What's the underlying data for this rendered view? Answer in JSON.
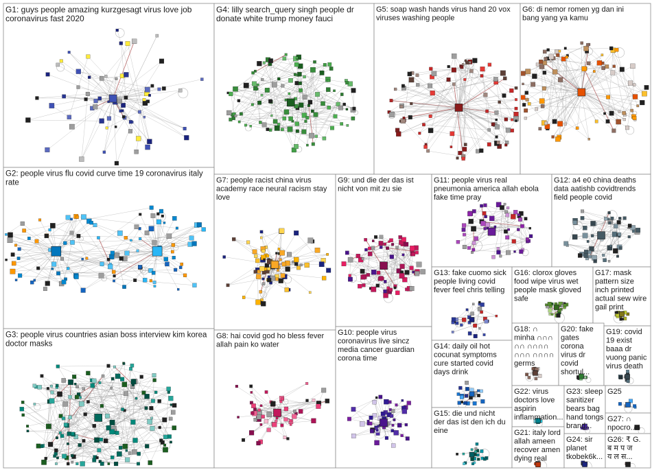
{
  "graph": {
    "background": "#ffffff",
    "groups": [
      {
        "id": "G1",
        "lines": [
          "G1: guys people amazing kurzgesagt virus love job",
          "coronavirus fast 2020"
        ],
        "edge_color": "#888888",
        "palette": [
          "#3f51b5",
          "#1a237e",
          "#212121",
          "#9e9e9e",
          "#5c6bc0",
          "#bdbdbd",
          "#ffeb3b",
          "#283593"
        ],
        "node_count": 70
      },
      {
        "id": "G4",
        "lines": [
          "G4: lilly search_query singh people dr",
          "donate white trump money fauci"
        ],
        "palette": [
          "#1b5e20",
          "#388e3c",
          "#43a047",
          "#2e7d32",
          "#66bb6a",
          "#212121",
          "#4caf50",
          "#9e9e9e"
        ],
        "node_count": 120
      },
      {
        "id": "G5",
        "lines": [
          "G5: soap wash hands virus hand 20 vox",
          "viruses washing people"
        ],
        "palette": [
          "#8b1a1a",
          "#c62828",
          "#7b1f1f",
          "#212121",
          "#a1887f",
          "#5d4037",
          "#e53935",
          "#9e9e9e"
        ],
        "node_count": 95
      },
      {
        "id": "G6",
        "lines": [
          "G6: di nemor romen yg dan ini",
          "bang yang ya kamu"
        ],
        "palette": [
          "#e65100",
          "#bf8f5b",
          "#fbc02d",
          "#8d6e63",
          "#212121",
          "#ff9800",
          "#d7ccc8",
          "#a0522d"
        ],
        "node_count": 95
      },
      {
        "id": "G2",
        "lines": [
          "G2: people virus flu covid curve time 19 coronavirus italy",
          "rate"
        ],
        "palette": [
          "#0277bd",
          "#29b6f6",
          "#1565c0",
          "#4fc3f7",
          "#212121",
          "#9e9e9e",
          "#0288d1",
          "#ff9800"
        ],
        "node_count": 120
      },
      {
        "id": "G7",
        "lines": [
          "G7: people racist china virus",
          "academy race neural racism stay",
          "love"
        ],
        "palette": [
          "#f9a825",
          "#ffd54f",
          "#1a237e",
          "#212121",
          "#fbc02d",
          "#9e9e9e",
          "#ffb300",
          "#5d4037"
        ],
        "node_count": 85
      },
      {
        "id": "G9",
        "lines": [
          "G9: und die der das ist",
          "nicht von mit zu sie"
        ],
        "palette": [
          "#880e4f",
          "#ad1457",
          "#c2185b",
          "#212121",
          "#d81b60",
          "#9e9e9e",
          "#4a148c",
          "#e91e63"
        ],
        "node_count": 80
      },
      {
        "id": "G11",
        "lines": [
          "G11: people virus real",
          "pneumonia america allah ebola",
          "fake time pray"
        ],
        "palette": [
          "#6a1b9a",
          "#8e24aa",
          "#4a148c",
          "#212121",
          "#ab47bc",
          "#9e9e9e",
          "#ce93d8",
          "#c62828"
        ],
        "node_count": 60
      },
      {
        "id": "G12",
        "lines": [
          "G12: a4 e0 china deaths",
          "data aatishb covidtrends",
          "field people covid"
        ],
        "palette": [
          "#455a64",
          "#78909c",
          "#37474f",
          "#212121",
          "#90a4ae",
          "#9e9e9e",
          "#546e7a",
          "#b0bec5"
        ],
        "node_count": 55
      },
      {
        "id": "G3",
        "lines": [
          "G3: people virus countries asian boss interview kim korea",
          "doctor masks"
        ],
        "palette": [
          "#00695c",
          "#00897b",
          "#004d40",
          "#212121",
          "#26a69a",
          "#9e9e9e",
          "#80cbc4",
          "#1b5e20"
        ],
        "node_count": 160
      },
      {
        "id": "G8",
        "lines": [
          "G8: hai covid god ho bless fever",
          "allah pain ko water"
        ],
        "palette": [
          "#c2185b",
          "#ec407a",
          "#f06292",
          "#212121",
          "#ad1457",
          "#9e9e9e",
          "#f8bbd0",
          "#880e4f"
        ],
        "node_count": 60
      },
      {
        "id": "G10",
        "lines": [
          "G10: people virus",
          "coronavirus live sincz",
          "media cancer guardian",
          "corona time"
        ],
        "palette": [
          "#4a148c",
          "#6a1b9a",
          "#311b92",
          "#212121",
          "#7b1fa2",
          "#9e9e9e",
          "#d1c4e9",
          "#512da8"
        ],
        "node_count": 55
      },
      {
        "id": "G13",
        "lines": [
          "G13: fake cuomo sick",
          "people living covid",
          "fever feel chris telling"
        ],
        "palette": [
          "#1a237e",
          "#303f9f",
          "#c62828",
          "#212121",
          "#3949ab",
          "#9e9e9e",
          "#7986cb",
          "#283593"
        ],
        "node_count": 28
      },
      {
        "id": "G16",
        "lines": [
          "G16: clorox gloves",
          "food wipe virus wet",
          "people mask gloved",
          "safe"
        ],
        "palette": [
          "#33691e",
          "#558b2f",
          "#689f38",
          "#212121",
          "#7cb342",
          "#9e9e9e",
          "#aed581",
          "#1b5e20"
        ],
        "node_count": 28
      },
      {
        "id": "G17",
        "lines": [
          "G17: mask",
          "pattern size",
          "inch printed",
          "actual sew wire",
          "gail print"
        ],
        "palette": [
          "#827717",
          "#9e9d24",
          "#afb42b",
          "#212121",
          "#c0ca33",
          "#9e9e9e",
          "#dce775",
          "#558b2f"
        ],
        "node_count": 18
      },
      {
        "id": "G14",
        "lines": [
          "G14: daily oil hot",
          "cocunat symptoms",
          "cure started covid",
          "days drink"
        ],
        "palette": [
          "#1565c0",
          "#0d47a1",
          "#1976d2",
          "#212121",
          "#42a5f5",
          "#9e9e9e",
          "#90caf9",
          "#283593"
        ],
        "node_count": 22
      },
      {
        "id": "G18",
        "lines": [
          "G18: ∩",
          "minha ∩∩∩",
          "∩∩ ∩∩∩∩",
          "∩∩∩ ∩∩∩∩",
          "germs"
        ],
        "palette": [
          "#5d4037",
          "#795548",
          "#8d6e63",
          "#212121",
          "#a1887f",
          "#9e9e9e",
          "#d7ccc8",
          "#4e342e"
        ],
        "node_count": 10
      },
      {
        "id": "G20",
        "lines": [
          "G20: fake",
          "gates",
          "corona",
          "virus dr",
          "covid",
          "shortul..."
        ],
        "palette": [
          "#2e7d32",
          "#43a047",
          "#1b5e20",
          "#212121",
          "#66bb6a",
          "#9e9e9e",
          "#a5d6a7",
          "#388e3c"
        ],
        "node_count": 10
      },
      {
        "id": "G19",
        "lines": [
          "G19: covid",
          "19 exist",
          "baaa dr",
          "vuong panic",
          "virus death"
        ],
        "palette": [
          "#37474f",
          "#455a64",
          "#263238",
          "#212121",
          "#546e7a",
          "#9e9e9e",
          "#b0bec5",
          "#607d8b"
        ],
        "node_count": 10
      },
      {
        "id": "G22",
        "lines": [
          "G22: virus",
          "doctors love",
          "aspirin",
          "inflammation..."
        ],
        "palette": [
          "#00838f",
          "#0097a7",
          "#006064",
          "#212121",
          "#26c6da",
          "#9e9e9e",
          "#80deea",
          "#00acc1"
        ],
        "node_count": 10
      },
      {
        "id": "G23",
        "lines": [
          "G23: sleep",
          "sanitizer",
          "bears bag",
          "hand tongs",
          "brand..."
        ],
        "palette": [
          "#4527a0",
          "#5e35b1",
          "#311b92",
          "#212121",
          "#7e57c2",
          "#9e9e9e",
          "#b39ddb",
          "#512da8"
        ],
        "node_count": 8
      },
      {
        "id": "G25",
        "lines": [
          "G25"
        ],
        "palette": [
          "#1565c0",
          "#212121",
          "#9e9e9e",
          "#42a5f5"
        ],
        "node_count": 5
      },
      {
        "id": "G27",
        "lines": [
          "G27: ∩",
          "npocro..."
        ],
        "palette": [
          "#212121",
          "#616161",
          "#9e9e9e",
          "#1976d2"
        ],
        "node_count": 5
      },
      {
        "id": "G15",
        "lines": [
          "G15: die und nicht",
          "der das ist den ich du",
          "eine"
        ],
        "palette": [
          "#006064",
          "#00838f",
          "#212121",
          "#0097a7",
          "#9e9e9e",
          "#4dd0e1",
          "#004d40",
          "#26a69a"
        ],
        "node_count": 22
      },
      {
        "id": "G21",
        "lines": [
          "G21: italy lord",
          "allah ameen",
          "recover amen",
          "dying real"
        ],
        "palette": [
          "#bf360c",
          "#d84315",
          "#e64a19",
          "#212121",
          "#ff7043",
          "#9e9e9e",
          "#ffab91",
          "#8d6e63"
        ],
        "node_count": 10
      },
      {
        "id": "G24",
        "lines": [
          "G24: sir",
          "planet",
          "tkobek6k..."
        ],
        "palette": [
          "#1a237e",
          "#283593",
          "#212121",
          "#3949ab",
          "#9e9e9e",
          "#7986cb",
          "#c62828",
          "#303f9f"
        ],
        "node_count": 8
      },
      {
        "id": "G26",
        "lines": [
          "G26: ₹  G.",
          "ब म प ज",
          "य ल स..."
        ],
        "palette": [
          "#212121",
          "#424242",
          "#9e9e9e",
          "#1976d2",
          "#c62828"
        ],
        "node_count": 6
      }
    ]
  }
}
